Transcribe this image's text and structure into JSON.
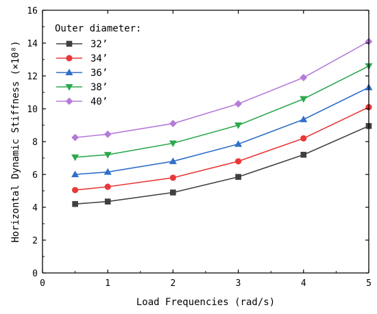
{
  "chart_data": {
    "type": "line",
    "xlabel": "Load Frequencies (rad/s)",
    "ylabel": "Horizontal Dynamic Stiffness (×10⁸)",
    "xlim": [
      0,
      5
    ],
    "ylim": [
      0,
      16
    ],
    "xticks": [
      0,
      1,
      2,
      3,
      4,
      5
    ],
    "yticks": [
      0,
      2,
      4,
      6,
      8,
      10,
      12,
      14,
      16
    ],
    "grid": false,
    "legend_title": "Outer diameter:",
    "legend_position": "top-left",
    "x": [
      0.5,
      1,
      2,
      3,
      4,
      5
    ],
    "series": [
      {
        "name": "32’",
        "color": "#404040",
        "marker": "square",
        "values": [
          4.2,
          4.35,
          4.9,
          5.85,
          7.2,
          8.95
        ]
      },
      {
        "name": "34’",
        "color": "#e8393a",
        "marker": "circle",
        "values": [
          5.05,
          5.25,
          5.8,
          6.8,
          8.2,
          10.1
        ]
      },
      {
        "name": "36’",
        "color": "#2f6fc9",
        "marker": "triangle-up",
        "values": [
          6.0,
          6.15,
          6.8,
          7.85,
          9.35,
          11.3
        ]
      },
      {
        "name": "38’",
        "color": "#2ea84f",
        "marker": "triangle-down",
        "values": [
          7.05,
          7.2,
          7.9,
          9.0,
          10.6,
          12.6
        ]
      },
      {
        "name": "40’",
        "color": "#b57bd8",
        "marker": "diamond",
        "values": [
          8.25,
          8.45,
          9.1,
          10.3,
          11.9,
          14.1
        ]
      }
    ]
  }
}
